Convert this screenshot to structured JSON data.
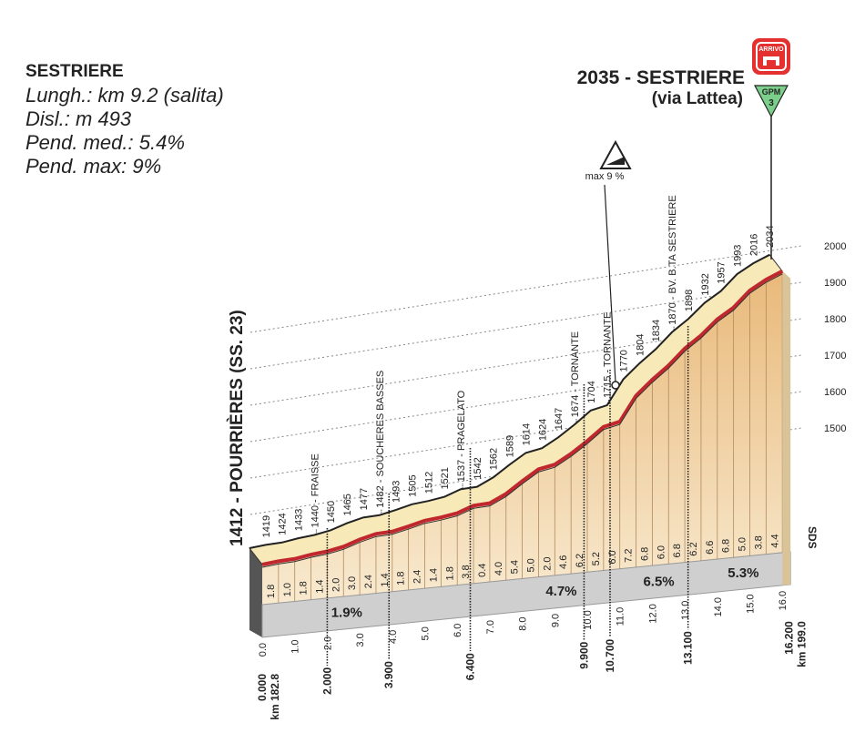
{
  "info": {
    "title": "SESTRIERE",
    "lines": [
      "Lungh.: km 9.2 (salita)",
      "Disl.: m 493",
      "Pend. med.: 5.4%",
      "Pend. max: 9%"
    ]
  },
  "finish": {
    "name": "2035 - SESTRIERE",
    "sub": "(via Lattea)",
    "arrivo": "ARRIVO",
    "gpm": "GPM",
    "gpm_cat": "3"
  },
  "max_grade": "max 9 %",
  "start": {
    "altitude": 1412,
    "label": "1412 - POURRIÈRES (SS. 23)"
  },
  "points": [
    {
      "altitude": 1419
    },
    {
      "altitude": 1424
    },
    {
      "altitude": 1433
    },
    {
      "altitude": 1440,
      "label": "1440 - FRAISSE"
    },
    {
      "altitude": 1450
    },
    {
      "altitude": 1465
    },
    {
      "altitude": 1477
    },
    {
      "altitude": 1482,
      "label": "1482 - SOUCHERES BASSES"
    },
    {
      "altitude": 1493
    },
    {
      "altitude": 1505
    },
    {
      "altitude": 1512
    },
    {
      "altitude": 1521
    },
    {
      "altitude": 1537,
      "label": "1537 - PRAGELATO"
    },
    {
      "altitude": 1542
    },
    {
      "altitude": 1562
    },
    {
      "altitude": 1589
    },
    {
      "altitude": 1614
    },
    {
      "altitude": 1624
    },
    {
      "altitude": 1647
    },
    {
      "altitude": 1674,
      "label": "1674 - TORNANTE"
    },
    {
      "altitude": 1704
    },
    {
      "altitude": 1715,
      "label": "1715 - TORNANTE"
    },
    {
      "altitude": 1770
    },
    {
      "altitude": 1804
    },
    {
      "altitude": 1834
    },
    {
      "altitude": 1870,
      "label": "1870 - BV. B.TA SESTRIERE"
    },
    {
      "altitude": 1898
    },
    {
      "altitude": 1932
    },
    {
      "altitude": 1957
    },
    {
      "altitude": 1993
    },
    {
      "altitude": 2016
    },
    {
      "altitude": 2034
    }
  ],
  "gradients": [
    "1.8",
    "1.0",
    "1.8",
    "1.4",
    "2.0",
    "3.0",
    "2.4",
    "1.4",
    "1.8",
    "2.4",
    "1.4",
    "1.8",
    "3.8",
    "0.4",
    "4.0",
    "5.4",
    "5.0",
    "2.0",
    "4.6",
    "6.2",
    "5.2",
    "6.0",
    "7.2",
    "6.8",
    "6.0",
    "6.8",
    "6.2",
    "6.6",
    "6.8",
    "5.0",
    "3.8",
    "4.4"
  ],
  "km_ticks": [
    "0.0",
    "1.0",
    "2.0",
    "3.0",
    "4.0",
    "5.0",
    "6.0",
    "7.0",
    "8.0",
    "9.0",
    "10.0",
    "11.0",
    "12.0",
    "13.0",
    "14.0",
    "15.0",
    "16.0"
  ],
  "markers": [
    {
      "km": "0.000",
      "total": "km 182.8"
    },
    {
      "km": "2.000"
    },
    {
      "km": "3.900"
    },
    {
      "km": "6.400"
    },
    {
      "km": "9.900"
    },
    {
      "km": "10.700"
    },
    {
      "km": "13.100"
    },
    {
      "km": "16.200",
      "total": "km 199.0"
    }
  ],
  "averages": [
    "1.9%",
    "4.7%",
    "6.5%",
    "5.3%"
  ],
  "altitude_scale": [
    2000,
    1900,
    1800,
    1700,
    1600,
    1500
  ],
  "sds": "SDS"
}
